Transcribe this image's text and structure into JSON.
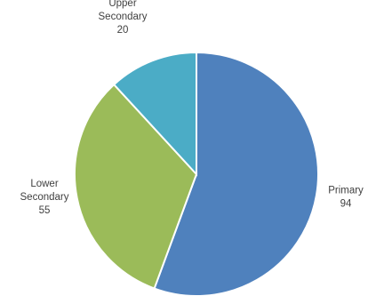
{
  "chart_data": {
    "type": "pie",
    "title": "",
    "categories": [
      "Primary",
      "Lower Secondary",
      "Upper Secondary"
    ],
    "label_lines": [
      [
        "Primary"
      ],
      [
        "Lower",
        "Secondary"
      ],
      [
        "Upper",
        "Secondary"
      ]
    ],
    "values": [
      94,
      55,
      20
    ],
    "colors": [
      "#4f81bd",
      "#9bbb59",
      "#4bacc6"
    ],
    "start_angle_deg": 0,
    "direction": "clockwise",
    "legend": "none",
    "data_labels": "outside"
  }
}
